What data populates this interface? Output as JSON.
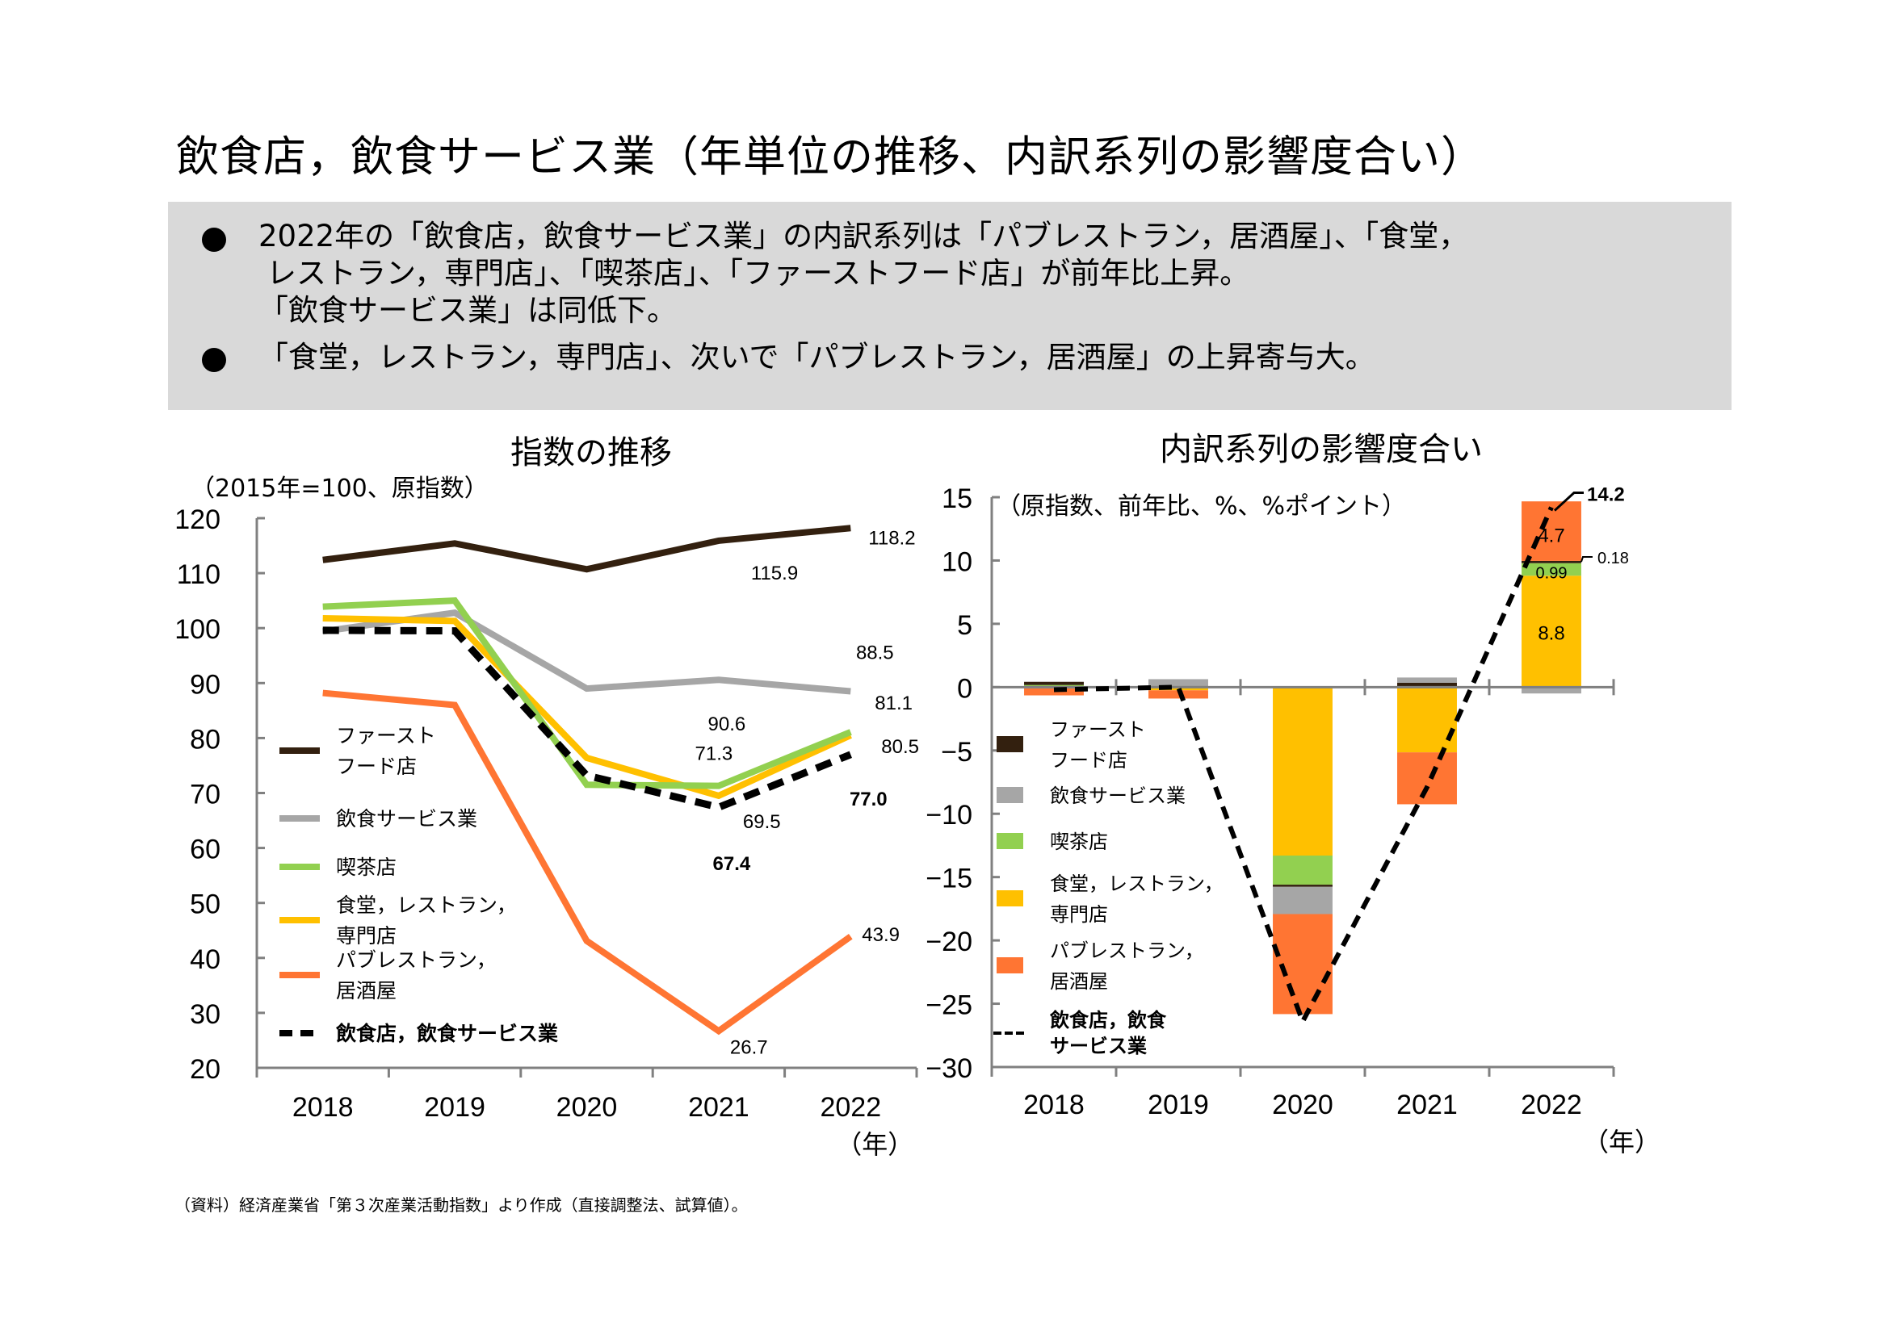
{
  "title": "飲食店，飲食サービス業（年単位の推移、内訳系列の影響度合い）",
  "summary": {
    "bullets": [
      {
        "lines": [
          "2022年の「飲食店，飲食サービス業」の内訳系列は「パブレストラン，居酒屋」、「食堂，",
          "レストラン，専門店」、「喫茶店」、「ファーストフード店」が前年比上昇。",
          "「飲食サービス業」は同低下。"
        ]
      },
      {
        "lines": [
          "「食堂，レストラン，専門店」、次いで「パブレストラン，居酒屋」の上昇寄与大。"
        ]
      }
    ]
  },
  "source_note": "（資料）経済産業省「第３次産業活動指数」より作成（直接調整法、試算値）。",
  "colors": {
    "fast_food": "#33200f",
    "food_service": "#a6a6a6",
    "cafe": "#92d050",
    "restaurant": "#ffc000",
    "pub": "#ff7533",
    "total": "#000000",
    "summary_bg": "#d9d9d9",
    "axis": "#808080"
  },
  "chart_data": [
    {
      "type": "line",
      "title": "指数の推移",
      "unit_note": "（2015年=100、原指数）",
      "xlabel": "（年）",
      "ylabel": "",
      "categories": [
        "2018",
        "2019",
        "2020",
        "2021",
        "2022"
      ],
      "ylim": [
        20,
        120
      ],
      "yticks": [
        20,
        30,
        40,
        50,
        60,
        70,
        80,
        90,
        100,
        110,
        120
      ],
      "grid": false,
      "legend_position": "left-inside",
      "series": [
        {
          "key": "fast_food",
          "name": "ファースト\nフード店",
          "values": [
            112.4,
            115.4,
            110.7,
            115.9,
            118.2
          ],
          "style": "solid"
        },
        {
          "key": "food_service",
          "name": "飲食サービス業",
          "values": [
            99.4,
            102.8,
            89.0,
            90.6,
            88.5
          ],
          "style": "solid"
        },
        {
          "key": "cafe",
          "name": "喫茶店",
          "values": [
            103.9,
            105.0,
            71.5,
            71.3,
            81.1
          ],
          "style": "solid"
        },
        {
          "key": "restaurant",
          "name": "食堂，レストラン，\n専門店",
          "values": [
            101.8,
            101.3,
            76.4,
            69.5,
            80.5
          ],
          "style": "solid"
        },
        {
          "key": "pub",
          "name": "パブレストラン，\n居酒屋",
          "values": [
            88.2,
            86.0,
            43.1,
            26.7,
            43.9
          ],
          "style": "solid"
        },
        {
          "key": "total",
          "name": "飲食店，飲食サービス業",
          "values": [
            99.6,
            99.5,
            73.2,
            67.4,
            77.0
          ],
          "style": "dashed"
        }
      ],
      "annotations": [
        {
          "series": "fast_food",
          "x": "2021",
          "label": "115.9"
        },
        {
          "series": "fast_food",
          "x": "2022",
          "label": "118.2"
        },
        {
          "series": "food_service",
          "x": "2021",
          "label": "90.6"
        },
        {
          "series": "food_service",
          "x": "2022",
          "label": "88.5"
        },
        {
          "series": "cafe",
          "x": "2021",
          "label": "71.3"
        },
        {
          "series": "cafe",
          "x": "2022",
          "label": "81.1"
        },
        {
          "series": "restaurant",
          "x": "2021",
          "label": "69.5"
        },
        {
          "series": "restaurant",
          "x": "2022",
          "label": "80.5"
        },
        {
          "series": "pub",
          "x": "2021",
          "label": "26.7"
        },
        {
          "series": "pub",
          "x": "2022",
          "label": "43.9"
        },
        {
          "series": "total",
          "x": "2021",
          "label": "67.4",
          "bold": true
        },
        {
          "series": "total",
          "x": "2022",
          "label": "77.0",
          "bold": true
        }
      ]
    },
    {
      "type": "bar",
      "stacked": true,
      "title": "内訳系列の影響度合い",
      "unit_note": "（原指数、前年比、%、%ポイント）",
      "xlabel": "（年）",
      "ylabel": "",
      "categories": [
        "2018",
        "2019",
        "2020",
        "2021",
        "2022"
      ],
      "ylim": [
        -30,
        15
      ],
      "yticks": [
        -30,
        -25,
        -20,
        -15,
        -10,
        -5,
        0,
        5,
        10,
        15
      ],
      "grid": false,
      "legend_position": "left-inside",
      "series": [
        {
          "key": "fast_food",
          "name": "ファースト\nフード店",
          "values": [
            0.25,
            0.1,
            -0.17,
            0.34,
            0.18
          ]
        },
        {
          "key": "food_service",
          "name": "飲食サービス業",
          "values": [
            -0.1,
            0.53,
            -2.15,
            0.42,
            -0.5
          ]
        },
        {
          "key": "cafe",
          "name": "喫茶店",
          "values": [
            0.05,
            0.0,
            -2.3,
            0.0,
            0.99
          ]
        },
        {
          "key": "restaurant",
          "name": "食堂，レストラン，\n専門店",
          "values": [
            0.12,
            -0.25,
            -13.3,
            -5.15,
            8.8
          ]
        },
        {
          "key": "pub",
          "name": "パブレストラン，\n居酒屋",
          "values": [
            -0.55,
            -0.65,
            -7.9,
            -4.1,
            4.7
          ]
        }
      ],
      "line": {
        "key": "total",
        "name": "飲食店，飲食\nサービス業",
        "values": [
          -0.2,
          0.0,
          -26.4,
          -7.9,
          14.2
        ],
        "style": "dashed"
      },
      "annotations": [
        {
          "x": "2022",
          "series": "restaurant",
          "label": "8.8"
        },
        {
          "x": "2022",
          "series": "cafe",
          "label": "0.99"
        },
        {
          "x": "2022",
          "series": "fast_food",
          "label": "0.18"
        },
        {
          "x": "2022",
          "series": "pub",
          "label": "4.7"
        },
        {
          "x": "2022",
          "series": "total",
          "label": "14.2",
          "bold": true
        }
      ]
    }
  ]
}
